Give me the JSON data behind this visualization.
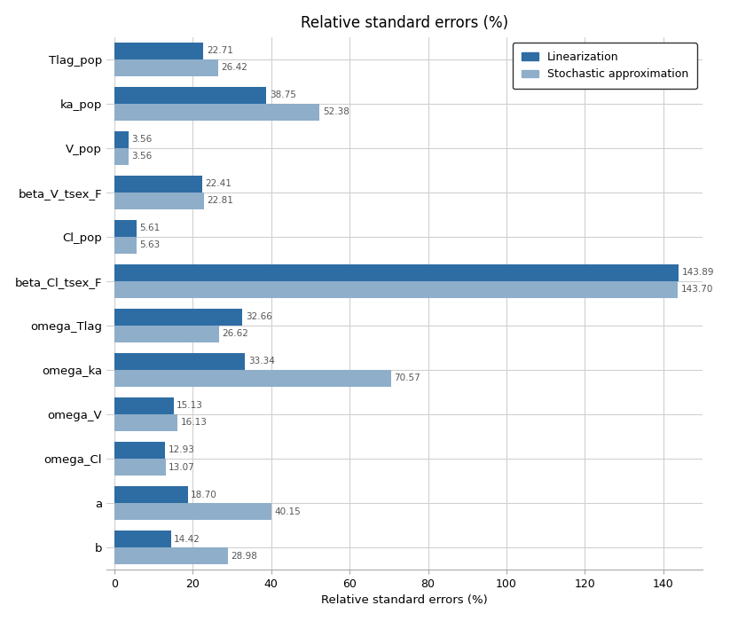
{
  "categories": [
    "Tlag_pop",
    "ka_pop",
    "V_pop",
    "beta_V_tsex_F",
    "Cl_pop",
    "beta_Cl_tsex_F",
    "omega_Tlag",
    "omega_ka",
    "omega_V",
    "omega_Cl",
    "a",
    "b"
  ],
  "linearization": [
    22.71,
    38.75,
    3.56,
    22.41,
    5.61,
    143.89,
    32.66,
    33.34,
    15.13,
    12.93,
    18.7,
    14.42
  ],
  "stochastic": [
    26.42,
    52.38,
    3.56,
    22.81,
    5.63,
    143.7,
    26.62,
    70.57,
    16.13,
    13.07,
    40.15,
    28.98
  ],
  "color_linearization": "#2e6da4",
  "color_stochastic": "#8eaec9",
  "title": "Relative standard errors (%)",
  "xlabel": "Relative standard errors (%)",
  "xlim": [
    -2,
    150
  ],
  "xticks": [
    0,
    20,
    40,
    60,
    80,
    100,
    120,
    140
  ],
  "background_color": "#ffffff",
  "grid_color": "#d0d0d0",
  "title_fontsize": 12,
  "label_fontsize": 9.5,
  "tick_fontsize": 9,
  "bar_height": 0.38,
  "legend_labels": [
    "Linearization",
    "Stochastic approximation"
  ],
  "value_fontsize": 7.5,
  "value_color": "#555555"
}
